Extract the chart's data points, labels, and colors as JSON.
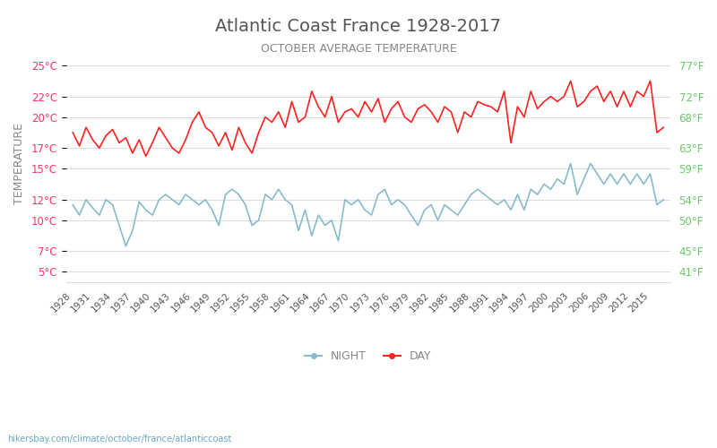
{
  "title": "Atlantic Coast France 1928-2017",
  "subtitle": "OCTOBER AVERAGE TEMPERATURE",
  "ylabel": "TEMPERATURE",
  "watermark": "hikersbay.com/climate/october/france/atlanticcoast",
  "title_color": "#555555",
  "subtitle_color": "#888888",
  "ylabel_color": "#888888",
  "tick_color_left": "#ff3366",
  "tick_color_right": "#66cc66",
  "bg_color": "#ffffff",
  "grid_color": "#dddddd",
  "day_color": "#ff2222",
  "night_color": "#88bbcc",
  "legend_night": "NIGHT",
  "legend_day": "DAY",
  "years": [
    1928,
    1929,
    1930,
    1931,
    1932,
    1933,
    1934,
    1935,
    1936,
    1937,
    1938,
    1939,
    1940,
    1941,
    1942,
    1943,
    1944,
    1945,
    1946,
    1947,
    1948,
    1949,
    1950,
    1951,
    1952,
    1953,
    1954,
    1955,
    1956,
    1957,
    1958,
    1959,
    1960,
    1961,
    1962,
    1963,
    1964,
    1965,
    1966,
    1967,
    1968,
    1969,
    1970,
    1971,
    1972,
    1973,
    1974,
    1975,
    1976,
    1977,
    1978,
    1979,
    1980,
    1981,
    1982,
    1983,
    1984,
    1985,
    1986,
    1987,
    1988,
    1989,
    1990,
    1991,
    1992,
    1993,
    1994,
    1995,
    1996,
    1997,
    1998,
    1999,
    2000,
    2001,
    2002,
    2003,
    2004,
    2005,
    2006,
    2007,
    2008,
    2009,
    2010,
    2011,
    2012,
    2013,
    2014,
    2015,
    2016,
    2017
  ],
  "day_temps": [
    18.5,
    17.2,
    19.0,
    17.8,
    17.0,
    18.2,
    18.8,
    17.5,
    18.0,
    16.5,
    17.8,
    16.2,
    17.5,
    19.0,
    18.0,
    17.0,
    16.5,
    17.8,
    19.5,
    20.5,
    19.0,
    18.5,
    17.2,
    18.5,
    16.8,
    19.0,
    17.5,
    16.5,
    18.5,
    20.0,
    19.5,
    20.5,
    19.0,
    21.5,
    19.5,
    20.0,
    22.5,
    21.0,
    20.0,
    22.0,
    19.5,
    20.5,
    20.8,
    20.0,
    21.5,
    20.5,
    21.8,
    19.5,
    20.8,
    21.5,
    20.0,
    19.5,
    20.8,
    21.2,
    20.5,
    19.5,
    21.0,
    20.5,
    18.5,
    20.5,
    20.0,
    21.5,
    21.2,
    21.0,
    20.5,
    22.5,
    17.5,
    21.0,
    20.0,
    22.5,
    20.8,
    21.5,
    22.0,
    21.5,
    22.0,
    23.5,
    21.0,
    21.5,
    22.5,
    23.0,
    21.5,
    22.5,
    21.0,
    22.5,
    21.0,
    22.5,
    22.0,
    23.5,
    18.5,
    19.0
  ],
  "night_temps": [
    11.5,
    10.5,
    12.0,
    11.2,
    10.5,
    12.0,
    11.5,
    9.5,
    7.5,
    9.0,
    11.8,
    11.0,
    10.5,
    12.0,
    12.5,
    12.0,
    11.5,
    12.5,
    12.0,
    11.5,
    12.0,
    11.0,
    9.5,
    12.5,
    13.0,
    12.5,
    11.5,
    9.5,
    10.0,
    12.5,
    12.0,
    13.0,
    12.0,
    11.5,
    9.0,
    11.0,
    8.5,
    10.5,
    9.5,
    10.0,
    8.0,
    12.0,
    11.5,
    12.0,
    11.0,
    10.5,
    12.5,
    13.0,
    11.5,
    12.0,
    11.5,
    10.5,
    9.5,
    11.0,
    11.5,
    10.0,
    11.5,
    11.0,
    10.5,
    11.5,
    12.5,
    13.0,
    12.5,
    12.0,
    11.5,
    12.0,
    11.0,
    12.5,
    11.0,
    13.0,
    12.5,
    13.5,
    13.0,
    14.0,
    13.5,
    15.5,
    12.5,
    14.0,
    15.5,
    14.5,
    13.5,
    14.5,
    13.5,
    14.5,
    13.5,
    14.5,
    13.5,
    14.5,
    11.5,
    12.0
  ],
  "yticks_c": [
    5,
    7,
    10,
    12,
    15,
    17,
    20,
    22,
    25
  ],
  "yticks_f": [
    41,
    45,
    50,
    54,
    59,
    63,
    68,
    72,
    77
  ],
  "ylim": [
    4,
    27
  ],
  "xtick_years": [
    1928,
    1931,
    1934,
    1937,
    1940,
    1943,
    1946,
    1949,
    1952,
    1955,
    1958,
    1961,
    1964,
    1967,
    1970,
    1973,
    1976,
    1979,
    1982,
    1985,
    1988,
    1991,
    1994,
    1997,
    2000,
    2003,
    2006,
    2009,
    2012,
    2015
  ]
}
